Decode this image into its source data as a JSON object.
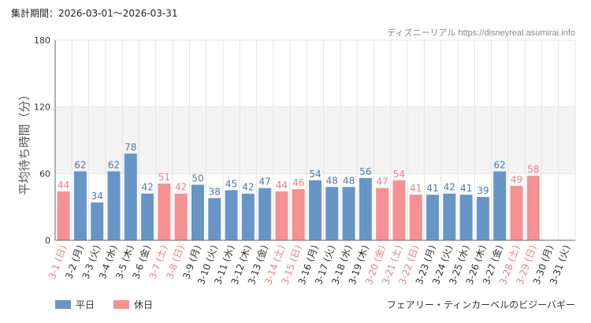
{
  "period_text": "集計期間：2026-03-01〜2026-03-31",
  "credit_text": "ディズニーリアル https://disneyreal.asumirai.info",
  "attraction_name": "フェアリー・ティンカーベルのビジーバギー",
  "colors": {
    "weekday": "#6796c6",
    "holiday": "#f59093",
    "weekday_text": "#4a79ad",
    "holiday_text": "#f07e82",
    "band": "#f3f3f3",
    "grid": "#e4e4e4",
    "axis": "#666666"
  },
  "chart_data": {
    "type": "bar",
    "ylabel": "平均待ち時間（分）",
    "ylim": [
      0,
      180
    ],
    "yticks": [
      0,
      60,
      120,
      180
    ],
    "band": [
      60,
      120
    ],
    "categories": [
      "3-1 (日)",
      "3-2 (月)",
      "3-3 (火)",
      "3-4 (水)",
      "3-5 (木)",
      "3-6 (金)",
      "3-7 (土)",
      "3-8 (日)",
      "3-9 (月)",
      "3-10 (火)",
      "3-11 (水)",
      "3-12 (木)",
      "3-13 (金)",
      "3-14 (土)",
      "3-15 (日)",
      "3-16 (月)",
      "3-17 (火)",
      "3-18 (水)",
      "3-19 (木)",
      "3-20 (金)",
      "3-21 (土)",
      "3-22 (日)",
      "3-23 (月)",
      "3-24 (火)",
      "3-25 (水)",
      "3-26 (木)",
      "3-27 (金)",
      "3-28 (土)",
      "3-29 (日)",
      "3-30 (月)",
      "3-31 (火)"
    ],
    "values": [
      44,
      62,
      34,
      62,
      78,
      42,
      51,
      42,
      50,
      38,
      45,
      42,
      47,
      44,
      46,
      54,
      48,
      48,
      56,
      47,
      54,
      41,
      41,
      42,
      41,
      39,
      62,
      49,
      58,
      null,
      null
    ],
    "day_type": [
      "holiday",
      "weekday",
      "weekday",
      "weekday",
      "weekday",
      "weekday",
      "holiday",
      "holiday",
      "weekday",
      "weekday",
      "weekday",
      "weekday",
      "weekday",
      "holiday",
      "holiday",
      "weekday",
      "weekday",
      "weekday",
      "weekday",
      "holiday",
      "holiday",
      "holiday",
      "weekday",
      "weekday",
      "weekday",
      "weekday",
      "weekday",
      "holiday",
      "holiday",
      "weekday",
      "weekday"
    ],
    "legend": [
      {
        "name": "平日",
        "key": "weekday"
      },
      {
        "name": "休日",
        "key": "holiday"
      }
    ]
  }
}
